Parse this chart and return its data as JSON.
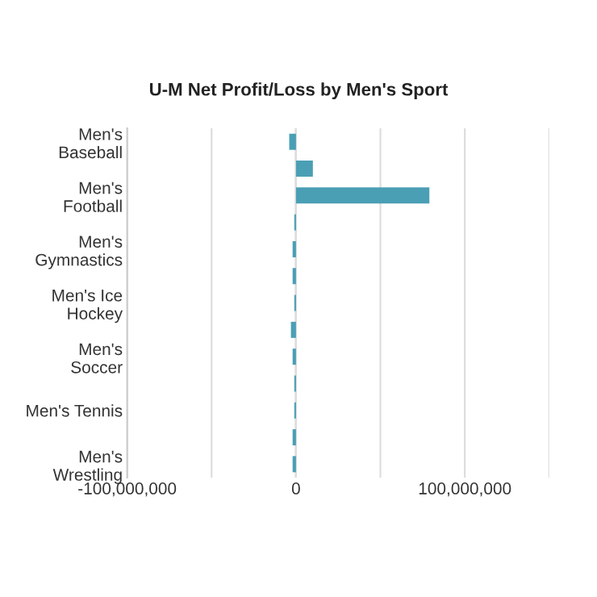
{
  "chart_data": {
    "type": "bar",
    "orientation": "horizontal",
    "title": "U-M Net Profit/Loss by Men's Sport",
    "categories": [
      "Men's\nBaseball",
      null,
      "Men's\nFootball",
      null,
      "Men's\nGymnastics",
      null,
      "Men's Ice\nHockey",
      null,
      "Men's\nSoccer",
      null,
      "Men's Tennis",
      null,
      "Men's\nWrestling"
    ],
    "values": [
      -4000000,
      10000000,
      79000000,
      -1000000,
      -2000000,
      -2000000,
      -1000000,
      -3000000,
      -2000000,
      -1000000,
      -1000000,
      -2000000,
      -2000000
    ],
    "color": "#4a9fb5",
    "xlim": [
      -100000000,
      150000000
    ],
    "xticks": [
      {
        "value": -100000000,
        "label": "-100,000,000"
      },
      {
        "value": -50000000,
        "label": null
      },
      {
        "value": 0,
        "label": "0"
      },
      {
        "value": 50000000,
        "label": null
      },
      {
        "value": 100000000,
        "label": "100,000,000"
      },
      {
        "value": 150000000,
        "label": null
      }
    ],
    "grid": "x",
    "ref_lines": [
      {
        "axis": "x",
        "value": 0,
        "color": "#000000"
      }
    ]
  }
}
